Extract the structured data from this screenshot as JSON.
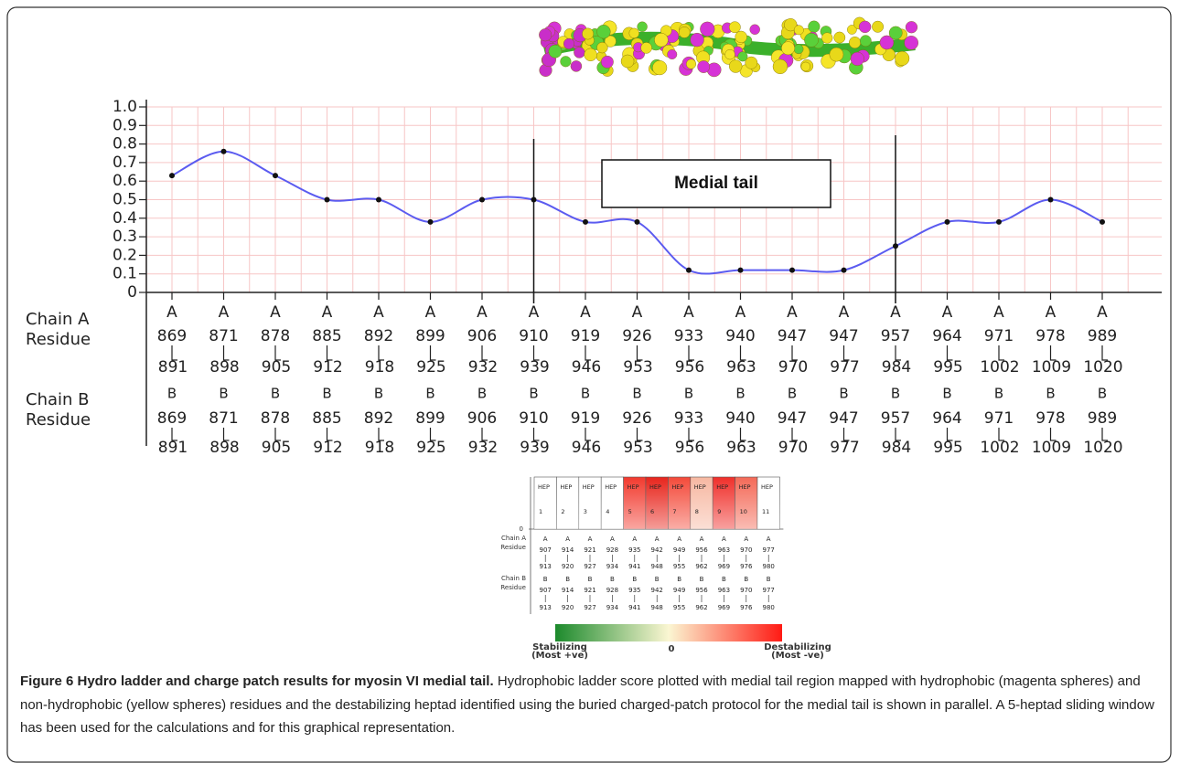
{
  "chart_data": {
    "type": "line",
    "row_labels": [
      "Chain A",
      "Residue",
      "Chain B",
      "Residue"
    ],
    "categories": [
      {
        "a": "A",
        "a_range": [
          "869",
          "891"
        ],
        "b": "B",
        "b_range": [
          "869",
          "891"
        ]
      },
      {
        "a": "A",
        "a_range": [
          "871",
          "898"
        ],
        "b": "B",
        "b_range": [
          "871",
          "898"
        ]
      },
      {
        "a": "A",
        "a_range": [
          "878",
          "905"
        ],
        "b": "B",
        "b_range": [
          "878",
          "905"
        ]
      },
      {
        "a": "A",
        "a_range": [
          "885",
          "912"
        ],
        "b": "B",
        "b_range": [
          "885",
          "912"
        ]
      },
      {
        "a": "A",
        "a_range": [
          "892",
          "918"
        ],
        "b": "B",
        "b_range": [
          "892",
          "918"
        ]
      },
      {
        "a": "A",
        "a_range": [
          "899",
          "925"
        ],
        "b": "B",
        "b_range": [
          "899",
          "925"
        ]
      },
      {
        "a": "A",
        "a_range": [
          "906",
          "932"
        ],
        "b": "B",
        "b_range": [
          "906",
          "932"
        ]
      },
      {
        "a": "A",
        "a_range": [
          "910",
          "939"
        ],
        "b": "B",
        "b_range": [
          "910",
          "939"
        ]
      },
      {
        "a": "A",
        "a_range": [
          "919",
          "946"
        ],
        "b": "B",
        "b_range": [
          "919",
          "946"
        ]
      },
      {
        "a": "A",
        "a_range": [
          "926",
          "953"
        ],
        "b": "B",
        "b_range": [
          "926",
          "953"
        ]
      },
      {
        "a": "A",
        "a_range": [
          "933",
          "956"
        ],
        "b": "B",
        "b_range": [
          "933",
          "956"
        ]
      },
      {
        "a": "A",
        "a_range": [
          "940",
          "963"
        ],
        "b": "B",
        "b_range": [
          "940",
          "963"
        ]
      },
      {
        "a": "A",
        "a_range": [
          "947",
          "970"
        ],
        "b": "B",
        "b_range": [
          "947",
          "970"
        ]
      },
      {
        "a": "A",
        "a_range": [
          "947",
          "977"
        ],
        "b": "B",
        "b_range": [
          "947",
          "977"
        ]
      },
      {
        "a": "A",
        "a_range": [
          "957",
          "984"
        ],
        "b": "B",
        "b_range": [
          "957",
          "984"
        ]
      },
      {
        "a": "A",
        "a_range": [
          "964",
          "995"
        ],
        "b": "B",
        "b_range": [
          "964",
          "995"
        ]
      },
      {
        "a": "A",
        "a_range": [
          "971",
          "1002"
        ],
        "b": "B",
        "b_range": [
          "971",
          "1002"
        ]
      },
      {
        "a": "A",
        "a_range": [
          "978",
          "1009"
        ],
        "b": "B",
        "b_range": [
          "978",
          "1009"
        ]
      },
      {
        "a": "A",
        "a_range": [
          "989",
          "1020"
        ],
        "b": "B",
        "b_range": [
          "989",
          "1020"
        ]
      }
    ],
    "values": [
      0.63,
      0.76,
      0.63,
      0.5,
      0.5,
      0.38,
      0.5,
      0.5,
      0.38,
      0.38,
      0.12,
      0.12,
      0.12,
      0.12,
      0.25,
      0.38,
      0.38,
      0.5,
      0.38
    ],
    "color": "#5b5bf0",
    "ylim": [
      0,
      1.0
    ],
    "yticks": [
      0,
      0.1,
      0.2,
      0.3,
      0.4,
      0.5,
      0.6,
      0.7,
      0.8,
      0.9,
      {
        "value": 1.0,
        "label": "1.0"
      }
    ],
    "grid": true,
    "annotation": {
      "text": "Medial tail",
      "from_index": 7,
      "to_index": 14
    }
  },
  "heptad_table": {
    "axis_label": "0",
    "row_labels": [
      "Chain A",
      "Residue",
      "Chain B",
      "Residue"
    ],
    "columns": [
      {
        "header": "HEP",
        "number": "1",
        "color": "#ffffff",
        "a": "A",
        "a_range": [
          "907",
          "913"
        ],
        "b": "B",
        "b_range": [
          "907",
          "913"
        ]
      },
      {
        "header": "HEP",
        "number": "2",
        "color": "#ffffff",
        "a": "A",
        "a_range": [
          "914",
          "920"
        ],
        "b": "B",
        "b_range": [
          "914",
          "920"
        ]
      },
      {
        "header": "HEP",
        "number": "3",
        "color": "#ffffff",
        "a": "A",
        "a_range": [
          "921",
          "927"
        ],
        "b": "B",
        "b_range": [
          "921",
          "927"
        ]
      },
      {
        "header": "HEP",
        "number": "4",
        "color": "#ffffff",
        "a": "A",
        "a_range": [
          "928",
          "934"
        ],
        "b": "B",
        "b_range": [
          "928",
          "934"
        ]
      },
      {
        "header": "HEP",
        "number": "5",
        "color": "#f23a2e",
        "a": "A",
        "a_range": [
          "935",
          "941"
        ],
        "b": "B",
        "b_range": [
          "935",
          "941"
        ]
      },
      {
        "header": "HEP",
        "number": "6",
        "color": "#e8251c",
        "a": "A",
        "a_range": [
          "942",
          "948"
        ],
        "b": "B",
        "b_range": [
          "942",
          "948"
        ]
      },
      {
        "header": "HEP",
        "number": "7",
        "color": "#f44a3a",
        "a": "A",
        "a_range": [
          "949",
          "955"
        ],
        "b": "B",
        "b_range": [
          "949",
          "955"
        ]
      },
      {
        "header": "HEP",
        "number": "8",
        "color": "#f7b8a2",
        "a": "A",
        "a_range": [
          "956",
          "962"
        ],
        "b": "B",
        "b_range": [
          "956",
          "962"
        ]
      },
      {
        "header": "HEP",
        "number": "9",
        "color": "#f0302a",
        "a": "A",
        "a_range": [
          "963",
          "969"
        ],
        "b": "B",
        "b_range": [
          "963",
          "969"
        ]
      },
      {
        "header": "HEP",
        "number": "10",
        "color": "#f46a58",
        "a": "A",
        "a_range": [
          "970",
          "976"
        ],
        "b": "B",
        "b_range": [
          "970",
          "976"
        ]
      },
      {
        "header": "HEP",
        "number": "11",
        "color": "#ffffff",
        "a": "A",
        "a_range": [
          "977",
          "980"
        ],
        "b": "B",
        "b_range": [
          "977",
          "980"
        ]
      }
    ],
    "colorbar": {
      "colors": [
        "#1c8a2c",
        "#fbf6d2",
        "#ff1a14"
      ],
      "left_label": [
        "Stabilizing",
        "(Most +ve)"
      ],
      "center_label": "0",
      "right_label": [
        "Destabilizing",
        "(Most -ve)"
      ]
    }
  },
  "caption": {
    "label": "Figure 6 Hydro ladder and charge patch results for myosin VI medial tail.",
    "text": "Hydrophobic ladder score plotted with medial tail region mapped with hydrophobic (magenta spheres) and non-hydrophobic (yellow spheres) residues and the destabilizing heptad identified using the buried charged-patch protocol for the medial tail is shown in parallel. A 5-heptad sliding window has been used for the calculations and for this graphical representation."
  }
}
